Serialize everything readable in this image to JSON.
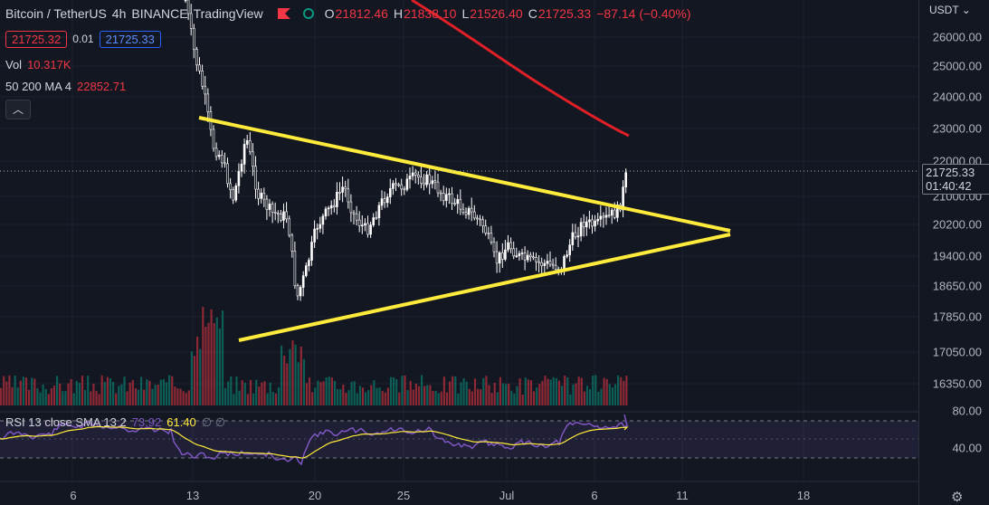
{
  "symbol": {
    "name": "Bitcoin / TetherUS",
    "interval": "4h",
    "exchange": "BINANCE",
    "source": "TradingView"
  },
  "ohlc": {
    "o_label": "O",
    "o": "21812.46",
    "h_label": "H",
    "h": "21838.10",
    "l_label": "L",
    "l": "21526.40",
    "c_label": "C",
    "c": "21725.33",
    "change": "−87.14 (−0.40%)"
  },
  "trade": {
    "bid": "21725.32",
    "spread": "0.01",
    "ask": "21725.33"
  },
  "volume": {
    "label": "Vol",
    "value": "10.317K"
  },
  "ma": {
    "label": "50 200 MA 4",
    "value": "22852.71"
  },
  "rsi": {
    "label": "RSI 13 close SMA 13 2",
    "v1": "73.92",
    "v2": "61.40",
    "extra": "∅ ∅"
  },
  "price_axis": {
    "currency": "USDT",
    "labels": [
      "26000.00",
      "25000.00",
      "24000.00",
      "23000.00",
      "22000.00",
      "21000.00",
      "20200.00",
      "19400.00",
      "18650.00",
      "17850.00",
      "17050.00",
      "16350.00"
    ],
    "last_price": "21725.33",
    "countdown": "01:40:42"
  },
  "rsi_axis": {
    "labels": [
      "80.00",
      "40.00"
    ]
  },
  "time_axis": {
    "labels": [
      "6",
      "13",
      "20",
      "25",
      "Jul",
      "6",
      "11",
      "18"
    ]
  },
  "colors": {
    "background": "#131722",
    "up": "#089981",
    "down": "#f23645",
    "candle": "#ffffff",
    "trendline": "#ffeb3b",
    "ma_line": "#e01f26",
    "rsi_line": "#7e57c2",
    "rsi_signal": "#ffeb3b"
  },
  "icons": {
    "flag": "flag-icon",
    "status": "status-circle-icon",
    "collapse": "chevron-up-icon",
    "settings": "gear-icon"
  }
}
